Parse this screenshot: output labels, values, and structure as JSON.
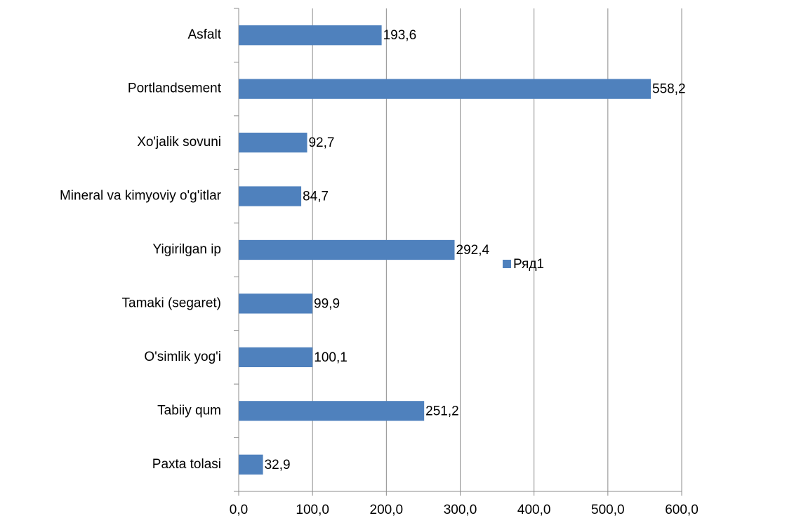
{
  "chart_data": {
    "type": "bar",
    "orientation": "horizontal",
    "categories": [
      "Asfalt",
      "Portlandsement",
      "Xo'jalik sovuni",
      "Mineral va kimyoviy o'g'itlar",
      "Yigirilgan ip",
      "Tamaki (segaret)",
      "O'simlik yog'i",
      "Tabiiy qum",
      "Paxta tolasi"
    ],
    "series": [
      {
        "name": "Ряд1",
        "color": "#4f81bd",
        "values": [
          193.6,
          558.2,
          92.7,
          84.7,
          292.4,
          99.9,
          100.1,
          251.2,
          32.9
        ],
        "value_labels": [
          "193,6",
          "558,2",
          "92,7",
          "84,7",
          "292,4",
          "99,9",
          "100,1",
          "251,2",
          "32,9"
        ]
      }
    ],
    "xlim": [
      0,
      600
    ],
    "xticks": [
      {
        "value": 0,
        "label": "0,0"
      },
      {
        "value": 100,
        "label": "100,0"
      },
      {
        "value": 200,
        "label": "200,0"
      },
      {
        "value": 300,
        "label": "300,0"
      },
      {
        "value": 400,
        "label": "400,0"
      },
      {
        "value": 500,
        "label": "500,0"
      },
      {
        "value": 600,
        "label": "600,0"
      }
    ],
    "grid": true,
    "legend": "right"
  }
}
